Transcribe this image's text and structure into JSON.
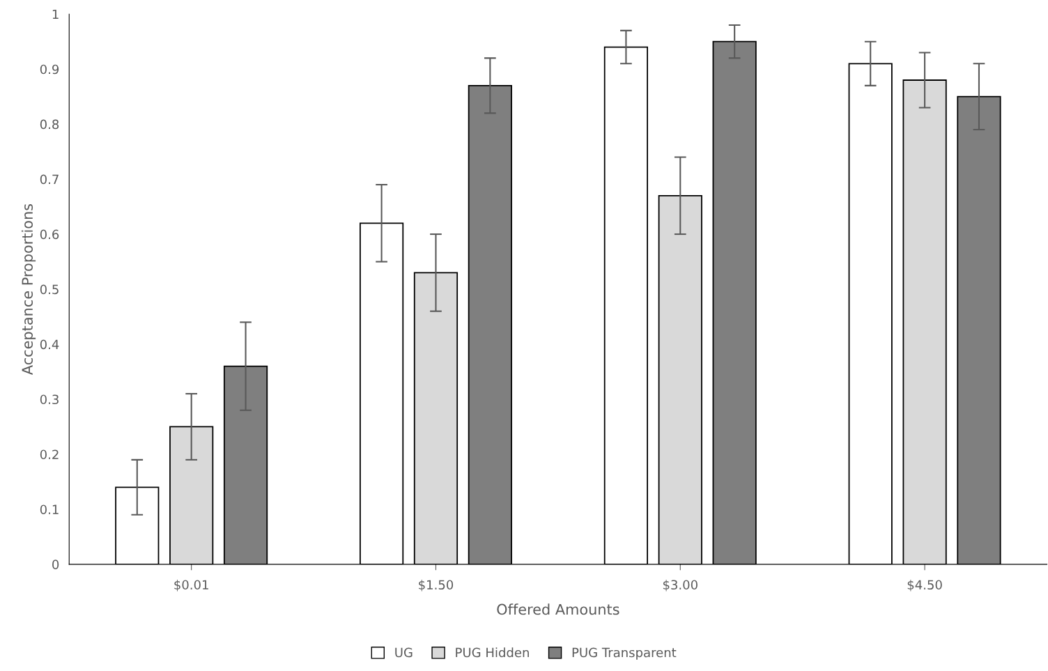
{
  "chart_data": {
    "type": "bar",
    "xlabel": "Offered Amounts",
    "ylabel": "Acceptance Proportions",
    "categories": [
      "$0.01",
      "$1.50",
      "$3.00",
      "$4.50"
    ],
    "series": [
      {
        "name": "UG",
        "color": "#ffffff",
        "values": [
          0.14,
          0.62,
          0.94,
          0.91
        ],
        "errors": [
          0.05,
          0.07,
          0.03,
          0.04
        ]
      },
      {
        "name": "PUG Hidden",
        "color": "#d9d9d9",
        "values": [
          0.25,
          0.53,
          0.67,
          0.88
        ],
        "errors": [
          0.06,
          0.07,
          0.07,
          0.05
        ]
      },
      {
        "name": "PUG Transparent",
        "color": "#7f7f7f",
        "values": [
          0.36,
          0.87,
          0.95,
          0.85
        ],
        "errors": [
          0.08,
          0.05,
          0.03,
          0.06
        ]
      }
    ],
    "ylim": [
      0,
      1
    ],
    "yticks": [
      0,
      0.1,
      0.2,
      0.3,
      0.4,
      0.5,
      0.6,
      0.7,
      0.8,
      0.9,
      1
    ],
    "grid": false,
    "legend": "bottom"
  }
}
